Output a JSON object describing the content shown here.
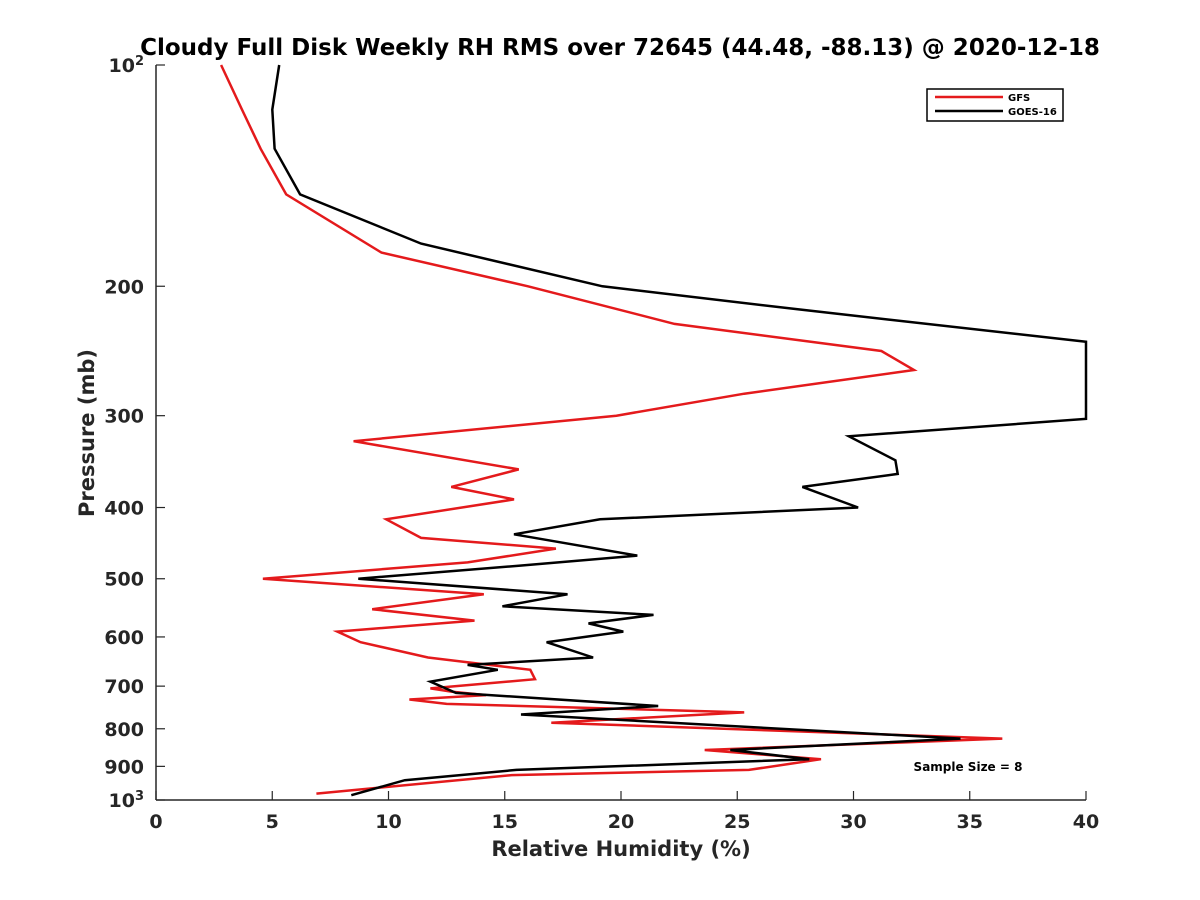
{
  "chart_data": {
    "type": "line",
    "title": "Cloudy Full Disk Weekly RH RMS over 72645 (44.48, -88.13) @ 2020-12-18",
    "xlabel": "Relative Humidity (%)",
    "ylabel": "Pressure (mb)",
    "xlim": [
      0,
      40
    ],
    "ylim": [
      100,
      1000
    ],
    "yscale": "log",
    "yreversed": true,
    "grid": false,
    "legend_position": "top-right",
    "x_ticks": [
      0,
      5,
      10,
      15,
      20,
      25,
      30,
      35,
      40
    ],
    "y_ticks": [
      {
        "value": 100,
        "base": "10",
        "exp": "2"
      },
      {
        "value": 200,
        "label": "200"
      },
      {
        "value": 300,
        "label": "300"
      },
      {
        "value": 400,
        "label": "400"
      },
      {
        "value": 500,
        "label": "500"
      },
      {
        "value": 600,
        "label": "600"
      },
      {
        "value": 700,
        "label": "700"
      },
      {
        "value": 800,
        "label": "800"
      },
      {
        "value": 900,
        "label": "900"
      },
      {
        "value": 1000,
        "base": "10",
        "exp": "3"
      }
    ],
    "annotation": "Sample Size = 8",
    "series": [
      {
        "name": "GFS",
        "color": "#e41a1c",
        "points": [
          [
            2.8,
            100
          ],
          [
            3.7,
            115
          ],
          [
            4.5,
            130
          ],
          [
            5.6,
            150
          ],
          [
            9.7,
            180
          ],
          [
            16,
            200
          ],
          [
            22.3,
            225
          ],
          [
            31.2,
            245
          ],
          [
            32.6,
            260
          ],
          [
            25.3,
            280
          ],
          [
            19.8,
            300
          ],
          [
            8.5,
            325
          ],
          [
            15.6,
            355
          ],
          [
            12.7,
            375
          ],
          [
            15.4,
            390
          ],
          [
            9.9,
            415
          ],
          [
            11.4,
            440
          ],
          [
            17.2,
            455
          ],
          [
            13.4,
            475
          ],
          [
            4.6,
            500
          ],
          [
            14.1,
            525
          ],
          [
            9.3,
            550
          ],
          [
            13.7,
            570
          ],
          [
            7.8,
            590
          ],
          [
            8.8,
            610
          ],
          [
            11.7,
            640
          ],
          [
            16.1,
            665
          ],
          [
            16.3,
            685
          ],
          [
            11.8,
            705
          ],
          [
            12.7,
            712
          ],
          [
            14.2,
            720
          ],
          [
            10.9,
            730
          ],
          [
            12.5,
            740
          ],
          [
            25.3,
            760
          ],
          [
            17,
            785
          ],
          [
            36.4,
            825
          ],
          [
            23.6,
            855
          ],
          [
            28.6,
            880
          ],
          [
            25.5,
            910
          ],
          [
            15.3,
            925
          ],
          [
            6.9,
            980
          ]
        ]
      },
      {
        "name": "GOES-16",
        "color": "#000000",
        "points": [
          [
            5.3,
            100
          ],
          [
            5,
            115
          ],
          [
            5.1,
            130
          ],
          [
            6.2,
            150
          ],
          [
            11.4,
            175
          ],
          [
            19.2,
            200
          ],
          [
            27.6,
            215
          ],
          [
            40,
            238
          ],
          [
            40,
            303
          ],
          [
            29.8,
            320
          ],
          [
            31.8,
            345
          ],
          [
            31.9,
            360
          ],
          [
            27.8,
            375
          ],
          [
            30.2,
            400
          ],
          [
            19.1,
            415
          ],
          [
            15.4,
            435
          ],
          [
            20.7,
            465
          ],
          [
            15.6,
            480
          ],
          [
            8.7,
            500
          ],
          [
            17.7,
            525
          ],
          [
            14.9,
            545
          ],
          [
            21.4,
            560
          ],
          [
            18.6,
            575
          ],
          [
            20.1,
            590
          ],
          [
            16.8,
            610
          ],
          [
            18.8,
            640
          ],
          [
            13.4,
            655
          ],
          [
            14.7,
            665
          ],
          [
            11.8,
            690
          ],
          [
            12.9,
            715
          ],
          [
            21.6,
            745
          ],
          [
            15.7,
            765
          ],
          [
            34.6,
            825
          ],
          [
            24.7,
            855
          ],
          [
            28.1,
            880
          ],
          [
            15.5,
            910
          ],
          [
            10.7,
            940
          ],
          [
            8.4,
            985
          ]
        ]
      }
    ]
  }
}
